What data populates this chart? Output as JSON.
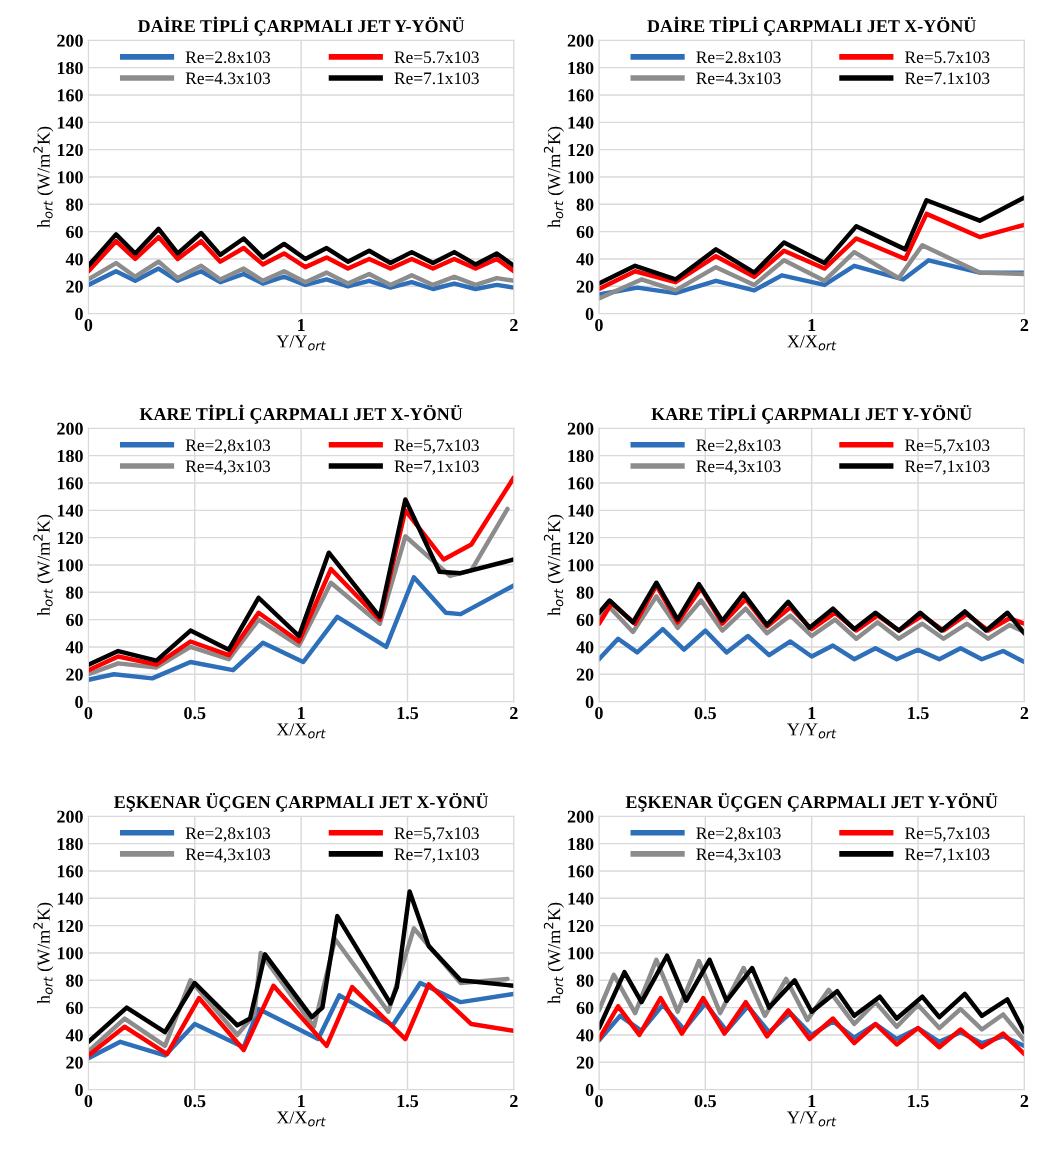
{
  "chart_data": [
    {
      "type": "line",
      "title": "DAİRE TİPLİ ÇARPMALI JET Y-YÖNÜ",
      "xlabel": "Y/Y$_{ort}$",
      "ylabel": "h$_{ort}$ (W/m$^{2}$K)",
      "xlim": [
        0,
        2
      ],
      "xticks": [
        0,
        1,
        2
      ],
      "ylim": [
        0,
        200
      ],
      "yticks": [
        0,
        20,
        40,
        60,
        80,
        100,
        120,
        140,
        160,
        180,
        200
      ],
      "grid": true,
      "legend": "top",
      "line_style": "solid",
      "marker": "none",
      "x": [
        0,
        0.13,
        0.22,
        0.33,
        0.42,
        0.53,
        0.62,
        0.73,
        0.82,
        0.92,
        1.02,
        1.12,
        1.22,
        1.32,
        1.42,
        1.52,
        1.62,
        1.72,
        1.82,
        1.92,
        2.0
      ],
      "series": [
        {
          "name": "Re=2.8x103",
          "color": "#2e6fba",
          "values": [
            21,
            31,
            24,
            33,
            24,
            31,
            23,
            29,
            22,
            27,
            21,
            25,
            20,
            24,
            19,
            23,
            18,
            22,
            18,
            21,
            19
          ]
        },
        {
          "name": "Re=4.3x103",
          "color": "#8c8c8c",
          "values": [
            25,
            37,
            27,
            38,
            26,
            35,
            25,
            33,
            24,
            31,
            23,
            30,
            22,
            29,
            21,
            28,
            21,
            27,
            21,
            26,
            24
          ]
        },
        {
          "name": "Re=5.7x103",
          "color": "#ff0000",
          "values": [
            31,
            53,
            40,
            56,
            40,
            53,
            38,
            48,
            36,
            44,
            34,
            41,
            33,
            40,
            33,
            40,
            33,
            40,
            33,
            40,
            31
          ]
        },
        {
          "name": "Re=7.1x103",
          "color": "#000000",
          "values": [
            35,
            58,
            44,
            62,
            44,
            59,
            43,
            55,
            41,
            51,
            40,
            48,
            38,
            46,
            37,
            45,
            37,
            45,
            36,
            44,
            35
          ]
        }
      ]
    },
    {
      "type": "line",
      "title": "DAİRE TİPLİ ÇARPMALI JET X-YÖNÜ",
      "xlabel": "X/X$_{ort}$",
      "ylabel": "h$_{ort}$ (W/m$^{2}$K)",
      "xlim": [
        0,
        2
      ],
      "xticks": [
        0,
        1,
        2
      ],
      "ylim": [
        0,
        200
      ],
      "yticks": [
        0,
        20,
        40,
        60,
        80,
        100,
        120,
        140,
        160,
        180,
        200
      ],
      "grid": true,
      "legend": "top",
      "line_style": "solid",
      "marker": "none",
      "series": [
        {
          "name": "Re=2.8x103",
          "color": "#2e6fba",
          "x": [
            0,
            0.18,
            0.36,
            0.55,
            0.73,
            0.86,
            1.06,
            1.2,
            1.43,
            1.55,
            1.79,
            2.0
          ],
          "values": [
            14,
            19,
            15,
            24,
            17,
            28,
            21,
            35,
            25,
            39,
            30,
            30
          ]
        },
        {
          "name": "Re=4.3x103",
          "color": "#8c8c8c",
          "x": [
            0,
            0.2,
            0.36,
            0.55,
            0.73,
            0.87,
            1.06,
            1.2,
            1.41,
            1.52,
            1.79,
            2.0
          ],
          "values": [
            11,
            25,
            17,
            34,
            21,
            39,
            24,
            45,
            26,
            50,
            30,
            29
          ]
        },
        {
          "name": "Re=5.7x103",
          "color": "#ff0000",
          "x": [
            0,
            0.17,
            0.36,
            0.55,
            0.73,
            0.87,
            1.06,
            1.21,
            1.44,
            1.54,
            1.79,
            2.0
          ],
          "values": [
            18,
            31,
            23,
            42,
            27,
            46,
            33,
            55,
            40,
            73,
            56,
            65
          ]
        },
        {
          "name": "Re=7.1x103",
          "color": "#000000",
          "x": [
            0,
            0.17,
            0.36,
            0.55,
            0.73,
            0.87,
            1.06,
            1.21,
            1.44,
            1.54,
            1.79,
            2.0
          ],
          "values": [
            22,
            35,
            25,
            47,
            30,
            52,
            37,
            64,
            47,
            83,
            68,
            85
          ]
        }
      ]
    },
    {
      "type": "line",
      "title": "KARE TİPLİ ÇARPMALI JET X-YÖNÜ",
      "xlabel": "X/X$_{ort}$",
      "ylabel": "h$_{ort}$ (W/m$^{2}$K)",
      "xlim": [
        0,
        2
      ],
      "xticks": [
        0,
        0.5,
        1,
        1.5,
        2
      ],
      "ylim": [
        0,
        200
      ],
      "yticks": [
        0,
        20,
        40,
        60,
        80,
        100,
        120,
        140,
        160,
        180,
        200
      ],
      "grid": true,
      "legend": "top",
      "line_style": "solid",
      "marker": "none",
      "series": [
        {
          "name": "Re=2,8x103",
          "color": "#2e6fba",
          "x": [
            0,
            0.12,
            0.3,
            0.48,
            0.68,
            0.82,
            1.01,
            1.17,
            1.4,
            1.53,
            1.68,
            1.75,
            2.0
          ],
          "values": [
            16,
            20,
            17,
            29,
            23,
            43,
            29,
            62,
            40,
            91,
            65,
            64,
            85
          ]
        },
        {
          "name": "Re=4,3x103",
          "color": "#8c8c8c",
          "x": [
            0,
            0.14,
            0.32,
            0.48,
            0.66,
            0.8,
            0.99,
            1.14,
            1.37,
            1.49,
            1.7,
            1.8,
            1.97
          ],
          "values": [
            20,
            28,
            25,
            40,
            31,
            60,
            41,
            87,
            57,
            121,
            92,
            96,
            141
          ]
        },
        {
          "name": "Re=5,7x103",
          "color": "#ff0000",
          "x": [
            0,
            0.14,
            0.32,
            0.48,
            0.66,
            0.8,
            0.99,
            1.14,
            1.37,
            1.49,
            1.67,
            1.8,
            2.0
          ],
          "values": [
            23,
            33,
            27,
            44,
            34,
            65,
            44,
            97,
            60,
            140,
            104,
            115,
            164
          ]
        },
        {
          "name": "Re=7,1x103",
          "color": "#000000",
          "x": [
            0,
            0.14,
            0.32,
            0.48,
            0.66,
            0.8,
            0.99,
            1.13,
            1.37,
            1.49,
            1.65,
            1.75,
            1.95,
            2.0
          ],
          "values": [
            27,
            37,
            30,
            52,
            38,
            76,
            48,
            109,
            62,
            148,
            95,
            94,
            102,
            104
          ]
        }
      ]
    },
    {
      "type": "line",
      "title": "KARE TİPLİ ÇARPMALI JET Y-YÖNÜ",
      "xlabel": "Y/Y$_{ort}$",
      "ylabel": "h$_{ort}$ (W/m$^{2}$K)",
      "xlim": [
        0,
        2
      ],
      "xticks": [
        0,
        0.5,
        1,
        1.5,
        2
      ],
      "ylim": [
        0,
        200
      ],
      "yticks": [
        0,
        20,
        40,
        60,
        80,
        100,
        120,
        140,
        160,
        180,
        200
      ],
      "grid": true,
      "legend": "top",
      "line_style": "solid",
      "marker": "none",
      "series": [
        {
          "name": "Re=2,8x103",
          "color": "#2e6fba",
          "x": [
            0,
            0.09,
            0.18,
            0.3,
            0.4,
            0.5,
            0.6,
            0.7,
            0.8,
            0.9,
            1.0,
            1.1,
            1.2,
            1.3,
            1.4,
            1.5,
            1.6,
            1.7,
            1.8,
            1.9,
            2.0
          ],
          "values": [
            31,
            46,
            36,
            53,
            38,
            52,
            36,
            48,
            34,
            44,
            33,
            41,
            31,
            39,
            31,
            38,
            31,
            39,
            31,
            37,
            29
          ]
        },
        {
          "name": "Re=4,3x103",
          "color": "#8c8c8c",
          "x": [
            0,
            0.05,
            0.16,
            0.27,
            0.37,
            0.48,
            0.58,
            0.69,
            0.79,
            0.9,
            1.0,
            1.11,
            1.21,
            1.31,
            1.41,
            1.52,
            1.62,
            1.73,
            1.83,
            1.93,
            2.0
          ],
          "values": [
            62,
            69,
            51,
            77,
            54,
            74,
            52,
            68,
            50,
            63,
            48,
            60,
            46,
            58,
            46,
            57,
            46,
            57,
            46,
            56,
            51
          ]
        },
        {
          "name": "Re=5,7x103",
          "color": "#ff0000",
          "x": [
            0,
            0.06,
            0.17,
            0.27,
            0.37,
            0.48,
            0.58,
            0.69,
            0.79,
            0.9,
            1.0,
            1.11,
            1.21,
            1.31,
            1.41,
            1.52,
            1.62,
            1.73,
            1.83,
            1.93,
            2.0
          ],
          "values": [
            57,
            72,
            57,
            85,
            58,
            83,
            57,
            75,
            55,
            69,
            53,
            65,
            52,
            63,
            52,
            63,
            52,
            64,
            52,
            61,
            57
          ]
        },
        {
          "name": "Re=7,1x103",
          "color": "#000000",
          "x": [
            0,
            0.05,
            0.16,
            0.27,
            0.37,
            0.47,
            0.58,
            0.68,
            0.79,
            0.89,
            0.99,
            1.1,
            1.2,
            1.3,
            1.41,
            1.51,
            1.61,
            1.72,
            1.82,
            1.92,
            2.0
          ],
          "values": [
            65,
            74,
            58,
            87,
            60,
            86,
            59,
            79,
            56,
            73,
            54,
            68,
            53,
            65,
            52,
            65,
            52,
            66,
            52,
            65,
            50
          ]
        }
      ]
    },
    {
      "type": "line",
      "title": "EŞKENAR ÜÇGEN ÇARPMALI JET X-YÖNÜ",
      "xlabel": "X/X$_{ort}$",
      "ylabel": "h$_{ort}$ (W/m$^{2}$K)",
      "xlim": [
        0,
        2
      ],
      "xticks": [
        0,
        0.5,
        1,
        1.5,
        2
      ],
      "ylim": [
        0,
        200
      ],
      "yticks": [
        0,
        20,
        40,
        60,
        80,
        100,
        120,
        140,
        160,
        180,
        200
      ],
      "grid": true,
      "legend": "top",
      "line_style": "solid",
      "marker": "none",
      "series": [
        {
          "name": "Re=2,8x103",
          "color": "#2e6fba",
          "x": [
            0,
            0.15,
            0.36,
            0.5,
            0.73,
            0.8,
            1.08,
            1.18,
            1.43,
            1.56,
            1.75,
            2.0
          ],
          "values": [
            23,
            35,
            25,
            48,
            31,
            59,
            37,
            69,
            47,
            78,
            64,
            70
          ]
        },
        {
          "name": "Re=4,3x103",
          "color": "#8c8c8c",
          "x": [
            0,
            0.17,
            0.36,
            0.48,
            0.7,
            0.78,
            0.81,
            1.06,
            1.16,
            1.41,
            1.53,
            1.75,
            1.97
          ],
          "values": [
            28,
            52,
            32,
            80,
            40,
            55,
            100,
            46,
            110,
            57,
            118,
            78,
            81
          ]
        },
        {
          "name": "Re=5,7x103",
          "color": "#ff0000",
          "x": [
            0,
            0.17,
            0.37,
            0.52,
            0.73,
            0.87,
            1.12,
            1.24,
            1.49,
            1.6,
            1.8,
            2.0
          ],
          "values": [
            25,
            46,
            26,
            67,
            29,
            76,
            32,
            75,
            37,
            77,
            48,
            43
          ]
        },
        {
          "name": "Re=7,1x103",
          "color": "#000000",
          "x": [
            0,
            0.18,
            0.36,
            0.5,
            0.7,
            0.76,
            0.83,
            1.05,
            1.1,
            1.17,
            1.42,
            1.45,
            1.51,
            1.6,
            1.75,
            2.0
          ],
          "values": [
            35,
            60,
            42,
            78,
            47,
            52,
            99,
            53,
            60,
            127,
            63,
            75,
            145,
            105,
            80,
            76
          ]
        }
      ]
    },
    {
      "type": "line",
      "title": "EŞKENAR ÜÇGEN ÇARPMALI JET Y-YÖNÜ",
      "xlabel": "Y/Y$_{ort}$",
      "ylabel": "h$_{ort}$ (W/m$^{2}$K)",
      "xlim": [
        0,
        2
      ],
      "xticks": [
        0,
        0.5,
        1,
        1.5,
        2
      ],
      "ylim": [
        0,
        200
      ],
      "yticks": [
        0,
        20,
        40,
        60,
        80,
        100,
        120,
        140,
        160,
        180,
        200
      ],
      "grid": true,
      "legend": "top",
      "line_style": "solid",
      "marker": "none",
      "series": [
        {
          "name": "Re=2,8x103",
          "color": "#2e6fba",
          "x": [
            0,
            0.1,
            0.2,
            0.3,
            0.4,
            0.5,
            0.6,
            0.7,
            0.8,
            0.9,
            1.0,
            1.1,
            1.2,
            1.3,
            1.4,
            1.5,
            1.6,
            1.7,
            1.8,
            1.9,
            2.0
          ],
          "values": [
            36,
            54,
            43,
            62,
            44,
            63,
            43,
            61,
            42,
            56,
            40,
            50,
            38,
            48,
            37,
            45,
            35,
            42,
            34,
            39,
            32
          ]
        },
        {
          "name": "Re=4,3x103",
          "color": "#8c8c8c",
          "x": [
            0,
            0.07,
            0.17,
            0.27,
            0.37,
            0.47,
            0.57,
            0.68,
            0.78,
            0.88,
            0.98,
            1.08,
            1.2,
            1.3,
            1.4,
            1.5,
            1.6,
            1.7,
            1.8,
            1.9,
            2.0
          ],
          "values": [
            58,
            84,
            56,
            95,
            57,
            94,
            56,
            89,
            54,
            81,
            51,
            73,
            48,
            64,
            46,
            62,
            45,
            59,
            44,
            55,
            36
          ]
        },
        {
          "name": "Re=5,7x103",
          "color": "#ff0000",
          "x": [
            0,
            0.09,
            0.19,
            0.29,
            0.39,
            0.49,
            0.59,
            0.69,
            0.79,
            0.89,
            0.99,
            1.1,
            1.2,
            1.3,
            1.4,
            1.5,
            1.6,
            1.7,
            1.8,
            1.9,
            2.0
          ],
          "values": [
            37,
            61,
            40,
            67,
            41,
            67,
            41,
            64,
            39,
            58,
            37,
            52,
            34,
            48,
            33,
            45,
            31,
            44,
            31,
            41,
            26
          ]
        },
        {
          "name": "Re=7,1x103",
          "color": "#000000",
          "x": [
            0,
            0.12,
            0.2,
            0.32,
            0.41,
            0.52,
            0.6,
            0.72,
            0.8,
            0.92,
            1.0,
            1.12,
            1.2,
            1.32,
            1.4,
            1.52,
            1.6,
            1.72,
            1.8,
            1.92,
            2.0
          ],
          "values": [
            45,
            86,
            64,
            98,
            65,
            95,
            65,
            89,
            60,
            80,
            57,
            72,
            54,
            68,
            52,
            68,
            53,
            70,
            54,
            66,
            42
          ]
        }
      ]
    }
  ]
}
